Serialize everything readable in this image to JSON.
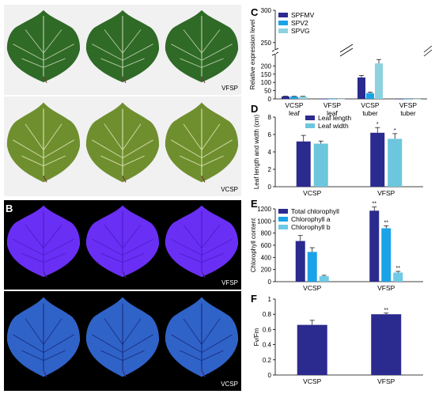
{
  "panels": {
    "A": {
      "label": "A",
      "photos": [
        {
          "caption": "VFSP",
          "leaves": 3,
          "bg": "#f1f1f1",
          "leaf_color": "#2f6a27",
          "vein_color": "#b9c9a6"
        },
        {
          "caption": "VCSP",
          "leaves": 3,
          "bg": "#f1f1f1",
          "leaf_color": "#6f8f2f",
          "vein_color": "#d7dca8"
        }
      ]
    },
    "B": {
      "label": "B",
      "photos": [
        {
          "caption": "VFSP",
          "leaves": 3,
          "bg": "#000000",
          "leaf_color": "#6a2ff5",
          "vein_color": "#4b1fc9"
        },
        {
          "caption": "VCSP",
          "leaves": 3,
          "bg": "#000000",
          "leaf_color": "#2f63c8",
          "vein_color": "#1b2f86"
        }
      ]
    },
    "C": {
      "label": "C"
    },
    "D": {
      "label": "D"
    },
    "E": {
      "label": "E"
    },
    "F": {
      "label": "F"
    }
  },
  "colors": {
    "navy": "#2b2a8f",
    "blue": "#1aa3e8",
    "light_blue": "#6cc6dd",
    "sky": "#6ecae6",
    "lightest": "#8dd2de"
  },
  "chart_data": [
    {
      "panel": "C",
      "type": "bar",
      "title": "",
      "xlabel": "",
      "ylabel": "Relative expression level",
      "categories": [
        "VCSP\nleaf",
        "VFSP\nleaf",
        "VCSP\ntuber",
        "VFSP\ntuber"
      ],
      "series": [
        {
          "name": "SPFMV",
          "color": "#2b2a8f",
          "values": [
            15,
            0.5,
            130,
            0.3
          ],
          "errors": [
            1.5,
            0,
            12,
            0
          ]
        },
        {
          "name": "SPV2",
          "color": "#1aa3e8",
          "values": [
            14,
            0.3,
            35,
            0.2
          ],
          "errors": [
            1.5,
            0,
            6,
            0
          ]
        },
        {
          "name": "SPVG",
          "color": "#8dd2de",
          "values": [
            14,
            0.3,
            215,
            0.2
          ],
          "errors": [
            1.5,
            0,
            24,
            0
          ]
        }
      ],
      "yticks": [
        0,
        50,
        100,
        150,
        200
      ],
      "ytick_labels": [
        "0",
        "50",
        "100",
        "150",
        "200"
      ],
      "ylim": [
        0,
        240
      ],
      "upper_ticks": [
        250,
        300
      ],
      "upper_range": [
        240,
        300
      ],
      "legend": "top-left"
    },
    {
      "panel": "D",
      "type": "bar",
      "title": "",
      "xlabel": "",
      "ylabel": "Leaf length and width (cm)",
      "categories": [
        "VCSP",
        "VFSP"
      ],
      "series": [
        {
          "name": "Leaf length",
          "color": "#2b2a8f",
          "values": [
            5.2,
            6.2
          ],
          "errors": [
            0.7,
            0.6
          ],
          "marks": [
            "",
            "*"
          ]
        },
        {
          "name": "Leaf width",
          "color": "#6cc6dd",
          "values": [
            4.95,
            5.5
          ],
          "errors": [
            0.3,
            0.6
          ],
          "marks": [
            "",
            "*"
          ]
        }
      ],
      "yticks": [
        0,
        2,
        4,
        6,
        8
      ],
      "ylim": [
        0,
        8
      ],
      "legend": "top-left"
    },
    {
      "panel": "E",
      "type": "bar",
      "title": "",
      "xlabel": "",
      "ylabel": "Chlorophyll content",
      "categories": [
        "VCSP",
        "VFSP"
      ],
      "series": [
        {
          "name": "Total chlorophyll",
          "color": "#2b2a8f",
          "values": [
            670,
            1170
          ],
          "errors": [
            90,
            60
          ],
          "marks": [
            "",
            "**"
          ]
        },
        {
          "name": "Chlorophyll a",
          "color": "#1aa3e8",
          "values": [
            490,
            880
          ],
          "errors": [
            70,
            40
          ],
          "marks": [
            "",
            "**"
          ]
        },
        {
          "name": "Chlorophyll b",
          "color": "#6ecae6",
          "values": [
            90,
            150
          ],
          "errors": [
            15,
            20
          ],
          "marks": [
            "",
            "**"
          ]
        }
      ],
      "yticks": [
        0,
        200,
        400,
        600,
        800,
        1000,
        1200
      ],
      "ylim": [
        0,
        1200
      ],
      "legend": "top-left"
    },
    {
      "panel": "F",
      "type": "bar",
      "title": "",
      "xlabel": "",
      "ylabel": "Fv/Fm",
      "categories": [
        "VCSP",
        "VFSP"
      ],
      "series": [
        {
          "name": "",
          "color": "#2b2a8f",
          "values": [
            0.66,
            0.8
          ],
          "errors": [
            0.06,
            0.015
          ],
          "marks": [
            "",
            "**"
          ]
        }
      ],
      "yticks": [
        0,
        0.2,
        0.4,
        0.6,
        0.8,
        1
      ],
      "ylim": [
        0,
        1
      ],
      "legend": "none"
    }
  ]
}
